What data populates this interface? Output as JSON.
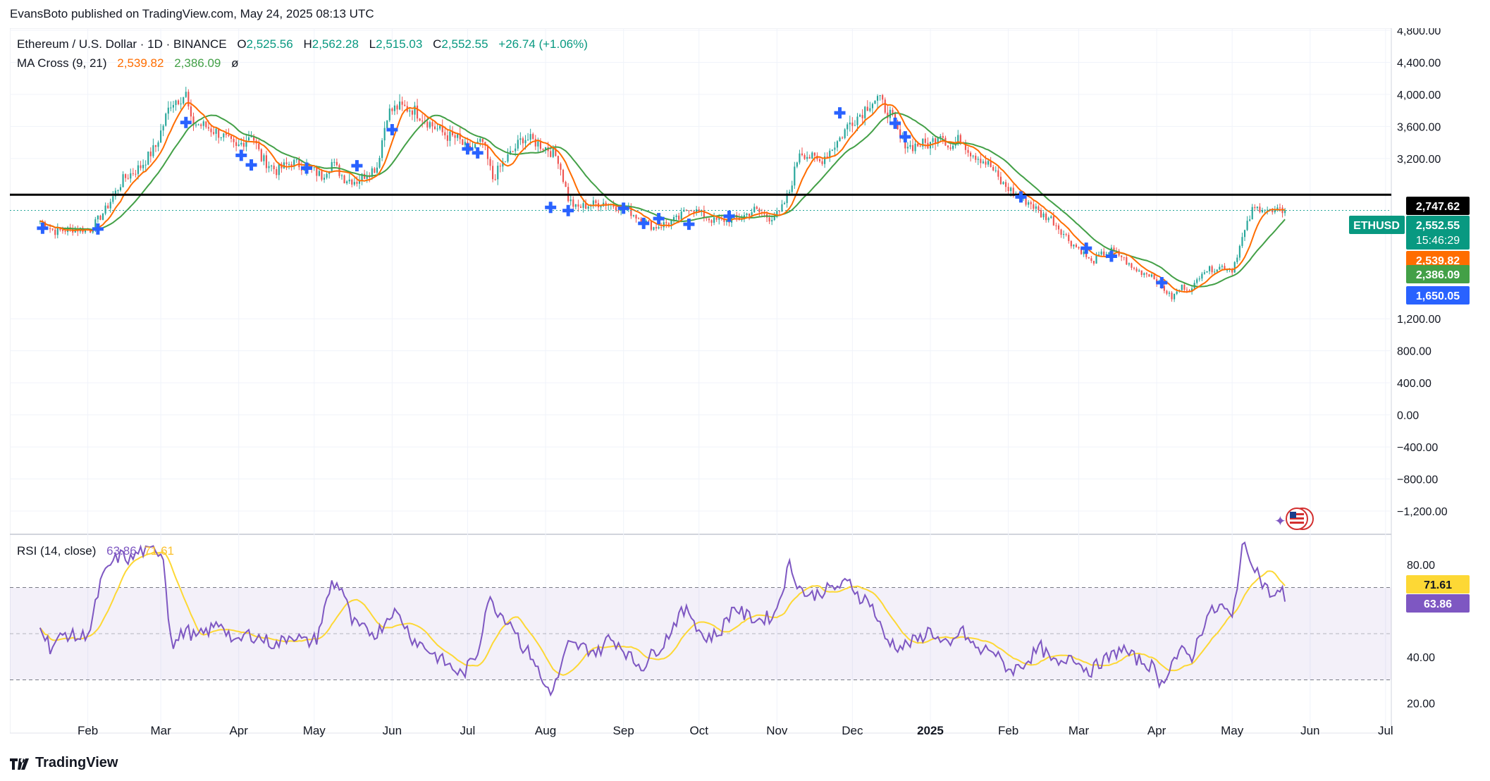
{
  "header": {
    "publisher": "EvansBoto published on TradingView.com, May 24, 2025 08:13 UTC"
  },
  "legend": {
    "symbol": "Ethereum / U.S. Dollar · 1D · BINANCE",
    "o_label": "O",
    "o": "2,525.56",
    "h_label": "H",
    "h": "2,562.28",
    "l_label": "L",
    "l": "2,515.03",
    "c_label": "C",
    "c": "2,552.55",
    "change": "+26.74 (+1.06%)",
    "ma_label": "MA Cross (9, 21)",
    "ma_fast": "2,539.82",
    "ma_slow": "2,386.09",
    "ma_extra": "ø",
    "rsi_label": "RSI (14, close)",
    "rsi_value": "63.86",
    "rsi_ma": "71.61"
  },
  "colors": {
    "up": "#26a69a",
    "down": "#ef5350",
    "fast": "#ff6d00",
    "slow": "#43a047",
    "rsi": "#7e57c2",
    "rsi_ma": "#fdd835",
    "cross": "#2962ff",
    "text": "#131722"
  },
  "price_tags": {
    "level": "2,747.62",
    "symbol": "ETHUSD",
    "last": "2,552.55",
    "countdown": "15:46:29",
    "fast": "2,539.82",
    "slow": "2,386.09",
    "cross": "1,650.05"
  },
  "rsi_tags": {
    "ma": "71.61",
    "value": "63.86"
  },
  "footer": {
    "brand": "TradingView"
  },
  "chart_data": {
    "type": "line",
    "title": "Ethereum / U.S. Dollar · 1D · BINANCE",
    "price_axis": {
      "min": -1200,
      "max": 4800,
      "ticks": [
        "4,800.00",
        "4,400.00",
        "4,000.00",
        "3,600.00",
        "3,200.00",
        "1,200.00",
        "800.00",
        "400.00",
        "0.00",
        "−400.00",
        "−800.00",
        "−1,200.00"
      ]
    },
    "rsi_axis": {
      "min": 10,
      "max": 90,
      "ticks": [
        "80.00",
        "40.00",
        "20.00"
      ],
      "bands": [
        30,
        50,
        70
      ]
    },
    "time_labels": [
      {
        "label": "Feb",
        "day": 31
      },
      {
        "label": "Mar",
        "day": 60
      },
      {
        "label": "Apr",
        "day": 91
      },
      {
        "label": "May",
        "day": 121
      },
      {
        "label": "Jun",
        "day": 152
      },
      {
        "label": "Jul",
        "day": 182
      },
      {
        "label": "Aug",
        "day": 213
      },
      {
        "label": "Sep",
        "day": 244
      },
      {
        "label": "Oct",
        "day": 274
      },
      {
        "label": "Nov",
        "day": 305
      },
      {
        "label": "Dec",
        "day": 335
      },
      {
        "label": "2025",
        "day": 366
      },
      {
        "label": "Feb",
        "day": 397
      },
      {
        "label": "Mar",
        "day": 425
      },
      {
        "label": "Apr",
        "day": 456
      },
      {
        "label": "May",
        "day": 486
      },
      {
        "label": "Jun",
        "day": 517
      },
      {
        "label": "Jul",
        "day": 547
      }
    ],
    "horizontal_level": 2747.62,
    "close_anchors": [
      [
        12,
        2420
      ],
      [
        18,
        2290
      ],
      [
        25,
        2320
      ],
      [
        32,
        2310
      ],
      [
        38,
        2560
      ],
      [
        45,
        2940
      ],
      [
        52,
        3100
      ],
      [
        58,
        3350
      ],
      [
        64,
        3900
      ],
      [
        70,
        4000
      ],
      [
        72,
        3650
      ],
      [
        78,
        3600
      ],
      [
        84,
        3500
      ],
      [
        90,
        3320
      ],
      [
        96,
        3520
      ],
      [
        100,
        3200
      ],
      [
        106,
        3050
      ],
      [
        112,
        3150
      ],
      [
        118,
        3100
      ],
      [
        124,
        2980
      ],
      [
        128,
        3150
      ],
      [
        133,
        2950
      ],
      [
        138,
        2920
      ],
      [
        142,
        3020
      ],
      [
        146,
        3100
      ],
      [
        150,
        3760
      ],
      [
        154,
        3840
      ],
      [
        160,
        3820
      ],
      [
        164,
        3720
      ],
      [
        168,
        3610
      ],
      [
        174,
        3480
      ],
      [
        178,
        3450
      ],
      [
        182,
        3300
      ],
      [
        188,
        3400
      ],
      [
        192,
        2950
      ],
      [
        196,
        3140
      ],
      [
        200,
        3290
      ],
      [
        204,
        3460
      ],
      [
        208,
        3420
      ],
      [
        214,
        3320
      ],
      [
        218,
        3200
      ],
      [
        222,
        2700
      ],
      [
        225,
        2580
      ],
      [
        230,
        2620
      ],
      [
        236,
        2650
      ],
      [
        242,
        2600
      ],
      [
        246,
        2550
      ],
      [
        250,
        2460
      ],
      [
        256,
        2340
      ],
      [
        260,
        2380
      ],
      [
        266,
        2450
      ],
      [
        270,
        2600
      ],
      [
        276,
        2480
      ],
      [
        280,
        2420
      ],
      [
        286,
        2440
      ],
      [
        290,
        2450
      ],
      [
        296,
        2560
      ],
      [
        302,
        2460
      ],
      [
        306,
        2510
      ],
      [
        310,
        2790
      ],
      [
        314,
        3300
      ],
      [
        318,
        3220
      ],
      [
        322,
        3160
      ],
      [
        326,
        3300
      ],
      [
        330,
        3450
      ],
      [
        334,
        3650
      ],
      [
        338,
        3750
      ],
      [
        342,
        3900
      ],
      [
        345,
        3950
      ],
      [
        350,
        3750
      ],
      [
        354,
        3450
      ],
      [
        358,
        3350
      ],
      [
        362,
        3380
      ],
      [
        366,
        3380
      ],
      [
        370,
        3540
      ],
      [
        374,
        3320
      ],
      [
        378,
        3460
      ],
      [
        382,
        3280
      ],
      [
        386,
        3200
      ],
      [
        390,
        3100
      ],
      [
        394,
        2900
      ],
      [
        398,
        2800
      ],
      [
        402,
        2700
      ],
      [
        406,
        2640
      ],
      [
        410,
        2500
      ],
      [
        414,
        2450
      ],
      [
        418,
        2300
      ],
      [
        422,
        2150
      ],
      [
        426,
        2050
      ],
      [
        430,
        1900
      ],
      [
        434,
        2000
      ],
      [
        438,
        2050
      ],
      [
        442,
        1980
      ],
      [
        446,
        1830
      ],
      [
        450,
        1780
      ],
      [
        454,
        1750
      ],
      [
        458,
        1600
      ],
      [
        462,
        1460
      ],
      [
        466,
        1600
      ],
      [
        470,
        1560
      ],
      [
        474,
        1800
      ],
      [
        478,
        1820
      ],
      [
        482,
        1850
      ],
      [
        486,
        1810
      ],
      [
        490,
        2200
      ],
      [
        494,
        2550
      ],
      [
        498,
        2600
      ],
      [
        502,
        2520
      ],
      [
        506,
        2550
      ],
      [
        507,
        2552.55
      ]
    ],
    "cross_markers": [
      {
        "day": 13,
        "price": 2330
      },
      {
        "day": 35,
        "price": 2320
      },
      {
        "day": 70,
        "price": 3650
      },
      {
        "day": 92,
        "price": 3240
      },
      {
        "day": 96,
        "price": 3120
      },
      {
        "day": 118,
        "price": 3080
      },
      {
        "day": 138,
        "price": 3110
      },
      {
        "day": 152,
        "price": 3560
      },
      {
        "day": 182,
        "price": 3320
      },
      {
        "day": 186,
        "price": 3270
      },
      {
        "day": 215,
        "price": 2590
      },
      {
        "day": 222,
        "price": 2550
      },
      {
        "day": 244,
        "price": 2580
      },
      {
        "day": 252,
        "price": 2390
      },
      {
        "day": 258,
        "price": 2450
      },
      {
        "day": 270,
        "price": 2380
      },
      {
        "day": 286,
        "price": 2480
      },
      {
        "day": 330,
        "price": 3770
      },
      {
        "day": 352,
        "price": 3640
      },
      {
        "day": 356,
        "price": 3470
      },
      {
        "day": 402,
        "price": 2720
      },
      {
        "day": 428,
        "price": 2080
      },
      {
        "day": 438,
        "price": 1980
      },
      {
        "day": 458,
        "price": 1650
      }
    ],
    "rsi_anchors": [
      [
        12,
        55
      ],
      [
        16,
        44
      ],
      [
        22,
        50
      ],
      [
        28,
        48
      ],
      [
        32,
        52
      ],
      [
        36,
        72
      ],
      [
        40,
        80
      ],
      [
        44,
        84
      ],
      [
        48,
        82
      ],
      [
        52,
        86
      ],
      [
        55,
        85
      ],
      [
        58,
        87
      ],
      [
        61,
        84
      ],
      [
        63,
        58
      ],
      [
        65,
        45
      ],
      [
        70,
        52
      ],
      [
        74,
        48
      ],
      [
        80,
        52
      ],
      [
        84,
        55
      ],
      [
        90,
        45
      ],
      [
        94,
        50
      ],
      [
        100,
        48
      ],
      [
        106,
        45
      ],
      [
        112,
        50
      ],
      [
        118,
        46
      ],
      [
        122,
        48
      ],
      [
        128,
        72
      ],
      [
        132,
        70
      ],
      [
        136,
        55
      ],
      [
        140,
        52
      ],
      [
        146,
        50
      ],
      [
        152,
        60
      ],
      [
        156,
        56
      ],
      [
        160,
        48
      ],
      [
        164,
        45
      ],
      [
        170,
        40
      ],
      [
        176,
        35
      ],
      [
        180,
        32
      ],
      [
        186,
        42
      ],
      [
        190,
        65
      ],
      [
        194,
        60
      ],
      [
        200,
        54
      ],
      [
        204,
        44
      ],
      [
        208,
        40
      ],
      [
        212,
        28
      ],
      [
        216,
        25
      ],
      [
        222,
        45
      ],
      [
        228,
        44
      ],
      [
        234,
        42
      ],
      [
        238,
        48
      ],
      [
        242,
        46
      ],
      [
        248,
        38
      ],
      [
        252,
        36
      ],
      [
        256,
        42
      ],
      [
        260,
        46
      ],
      [
        266,
        58
      ],
      [
        270,
        60
      ],
      [
        276,
        48
      ],
      [
        282,
        50
      ],
      [
        288,
        62
      ],
      [
        292,
        58
      ],
      [
        298,
        56
      ],
      [
        304,
        58
      ],
      [
        310,
        80
      ],
      [
        314,
        70
      ],
      [
        318,
        66
      ],
      [
        322,
        68
      ],
      [
        328,
        70
      ],
      [
        334,
        72
      ],
      [
        338,
        66
      ],
      [
        342,
        64
      ],
      [
        348,
        48
      ],
      [
        354,
        44
      ],
      [
        358,
        46
      ],
      [
        362,
        48
      ],
      [
        366,
        52
      ],
      [
        370,
        46
      ],
      [
        374,
        44
      ],
      [
        378,
        52
      ],
      [
        382,
        46
      ],
      [
        386,
        42
      ],
      [
        390,
        44
      ],
      [
        394,
        38
      ],
      [
        398,
        34
      ],
      [
        402,
        36
      ],
      [
        406,
        40
      ],
      [
        410,
        44
      ],
      [
        414,
        38
      ],
      [
        418,
        36
      ],
      [
        422,
        42
      ],
      [
        426,
        36
      ],
      [
        430,
        34
      ],
      [
        434,
        38
      ],
      [
        438,
        40
      ],
      [
        442,
        44
      ],
      [
        446,
        40
      ],
      [
        450,
        38
      ],
      [
        454,
        36
      ],
      [
        458,
        28
      ],
      [
        462,
        38
      ],
      [
        466,
        42
      ],
      [
        470,
        40
      ],
      [
        476,
        58
      ],
      [
        482,
        62
      ],
      [
        486,
        56
      ],
      [
        490,
        88
      ],
      [
        494,
        82
      ],
      [
        498,
        72
      ],
      [
        502,
        66
      ],
      [
        506,
        68
      ],
      [
        507,
        63.86
      ]
    ],
    "series": [
      {
        "name": "MA Cross (9, 21)",
        "values": [
          "2,539.82",
          "2,386.09"
        ]
      },
      {
        "name": "RSI (14, close)",
        "values": [
          "63.86",
          "71.61"
        ]
      }
    ]
  }
}
